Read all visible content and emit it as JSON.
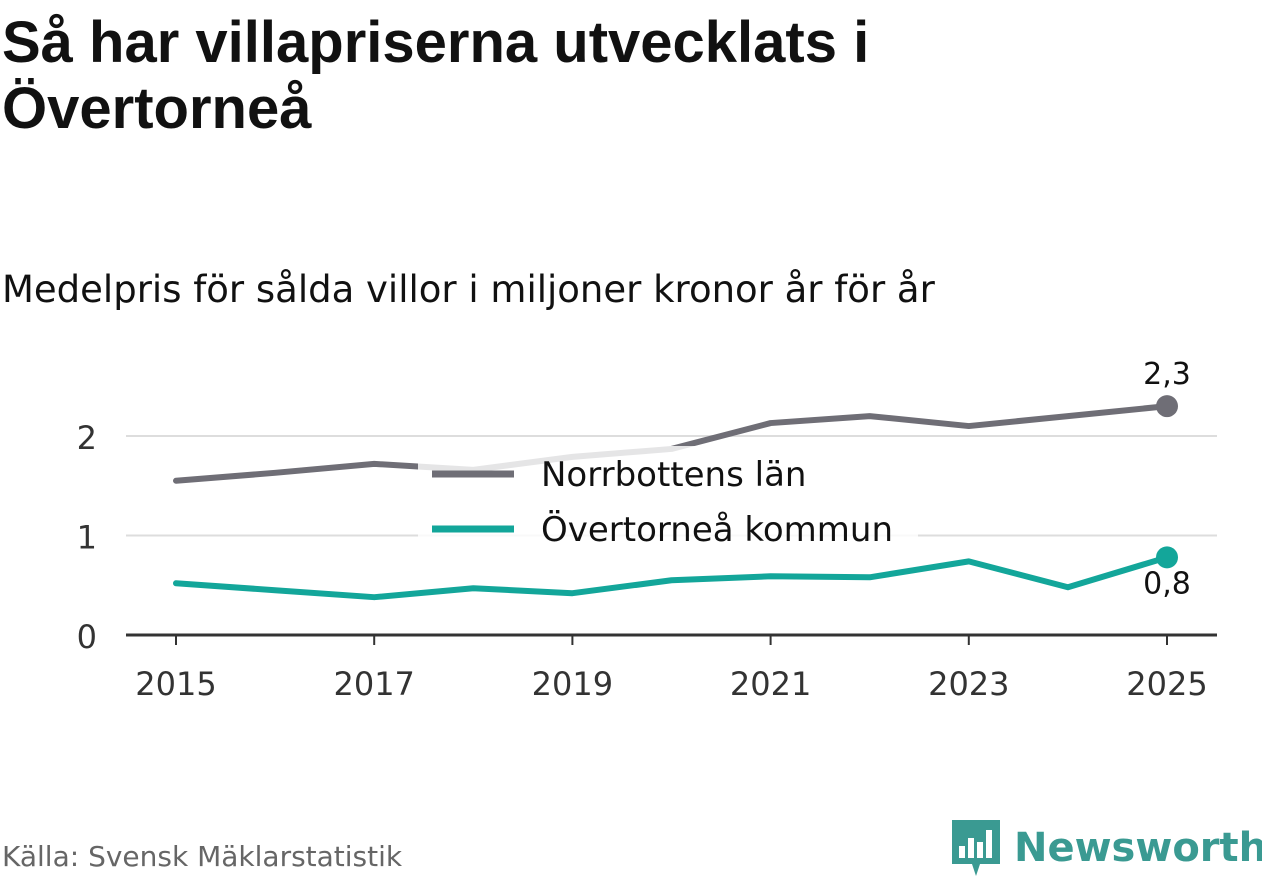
{
  "title": "Så har villapriserna utvecklats i Övertorneå",
  "subtitle": "Medelpris för sålda villor i miljoner kronor år för år",
  "source": "Källa: Svensk Mäklarstatistik",
  "brand": "Newsworthy",
  "colors": {
    "norrbotten": "#6f6e76",
    "overtornea": "#13a69a",
    "grid": "#dddddd",
    "axis": "#333333",
    "brand": "#3a9a92"
  },
  "chart_data": {
    "type": "line",
    "x": [
      2015,
      2016,
      2017,
      2018,
      2019,
      2020,
      2021,
      2022,
      2023,
      2024,
      2025
    ],
    "xticks": [
      "2015",
      "2017",
      "2019",
      "2021",
      "2023",
      "2025"
    ],
    "yticks": [
      "0",
      "1",
      "2"
    ],
    "ylim": [
      0,
      2.5
    ],
    "grid": true,
    "legend_position": "center",
    "series": [
      {
        "name": "Norrbottens län",
        "values": [
          1.55,
          1.63,
          1.72,
          1.66,
          1.79,
          1.87,
          2.13,
          2.2,
          2.1,
          2.2,
          2.3
        ],
        "end_label": "2,3"
      },
      {
        "name": "Övertorneå kommun",
        "values": [
          0.52,
          0.45,
          0.38,
          0.47,
          0.42,
          0.55,
          0.59,
          0.58,
          0.74,
          0.48,
          0.78
        ],
        "end_label": "0,8"
      }
    ]
  }
}
